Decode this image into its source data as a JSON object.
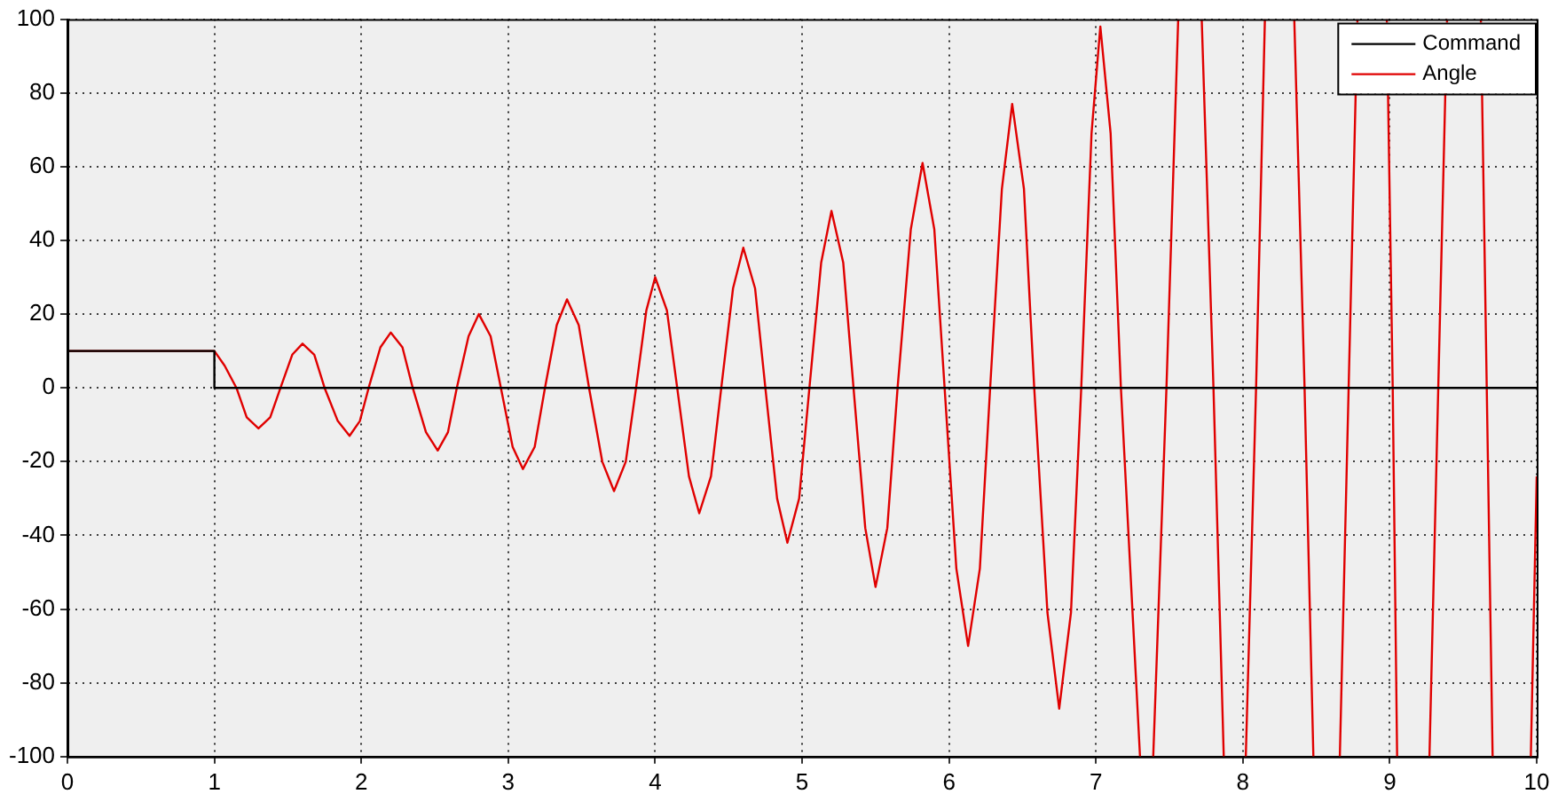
{
  "chart_data": {
    "type": "line",
    "xlim": [
      0,
      10
    ],
    "ylim": [
      -100,
      100
    ],
    "xticks": [
      0,
      1,
      2,
      3,
      4,
      5,
      6,
      7,
      8,
      9,
      10
    ],
    "yticks": [
      -100,
      -80,
      -60,
      -40,
      -20,
      0,
      20,
      40,
      60,
      80,
      100
    ],
    "grid": true,
    "legend": "top right",
    "marker": "none",
    "series": [
      {
        "name": "Command",
        "color": "#000000",
        "x": [
          0,
          1,
          1,
          10
        ],
        "values": [
          10,
          10,
          0,
          0
        ]
      },
      {
        "name": "Angle",
        "color": "#e00000",
        "x": [
          0,
          0.5,
          1,
          1.07,
          1.15,
          1.22,
          1.3,
          1.38,
          1.45,
          1.53,
          1.6,
          1.68,
          1.75,
          1.84,
          1.92,
          1.99,
          2.05,
          2.13,
          2.2,
          2.28,
          2.35,
          2.44,
          2.52,
          2.59,
          2.65,
          2.73,
          2.8,
          2.88,
          2.95,
          3.03,
          3.1,
          3.18,
          3.25,
          3.33,
          3.4,
          3.48,
          3.55,
          3.64,
          3.72,
          3.8,
          3.87,
          3.94,
          4.0,
          4.08,
          4.15,
          4.23,
          4.3,
          4.38,
          4.45,
          4.53,
          4.6,
          4.68,
          4.75,
          4.83,
          4.9,
          4.98,
          5.05,
          5.13,
          5.2,
          5.28,
          5.35,
          5.43,
          5.5,
          5.58,
          5.65,
          5.74,
          5.82,
          5.9,
          5.97,
          6.05,
          6.13,
          6.21,
          6.28,
          6.36,
          6.43,
          6.51,
          6.58,
          6.67,
          6.75,
          6.83,
          6.9,
          6.97,
          7.03,
          7.1,
          7.17,
          7.3,
          7.345,
          7.39,
          7.48,
          7.56,
          7.64,
          7.72,
          7.8,
          7.87,
          7.945,
          8.02,
          8.09,
          8.15,
          8.25,
          8.35,
          8.42,
          8.48,
          8.57,
          8.66,
          8.72,
          8.78,
          8.88,
          8.98,
          9.02,
          9.05,
          9.16,
          9.27,
          9.33,
          9.39,
          9.5,
          9.62,
          9.66,
          9.7,
          9.83,
          9.96,
          10
        ],
        "values": [
          10,
          10,
          10,
          6,
          0,
          -8,
          -11,
          -8,
          0,
          9,
          12,
          9,
          0,
          -9,
          -13,
          -9,
          0,
          11,
          15,
          11,
          0,
          -12,
          -17,
          -12,
          0,
          14,
          20,
          14,
          0,
          -16,
          -22,
          -16,
          0,
          17,
          24,
          17,
          0,
          -20,
          -28,
          -20,
          0,
          21,
          30,
          21,
          0,
          -24,
          -34,
          -24,
          0,
          27,
          38,
          27,
          0,
          -30,
          -42,
          -30,
          0,
          34,
          48,
          34,
          0,
          -38,
          -54,
          -38,
          0,
          43,
          61,
          43,
          0,
          -49,
          -70,
          -49,
          0,
          54,
          77,
          54,
          0,
          -61,
          -87,
          -61,
          0,
          69,
          98,
          69,
          0,
          -100,
          null,
          -100,
          0,
          100,
          null,
          100,
          0,
          -100,
          null,
          -100,
          0,
          100,
          null,
          100,
          0,
          -100,
          null,
          -100,
          0,
          100,
          null,
          100,
          0,
          -100,
          null,
          -100,
          0,
          100,
          null,
          100,
          0,
          -100,
          null,
          -100,
          -24
        ]
      }
    ]
  }
}
